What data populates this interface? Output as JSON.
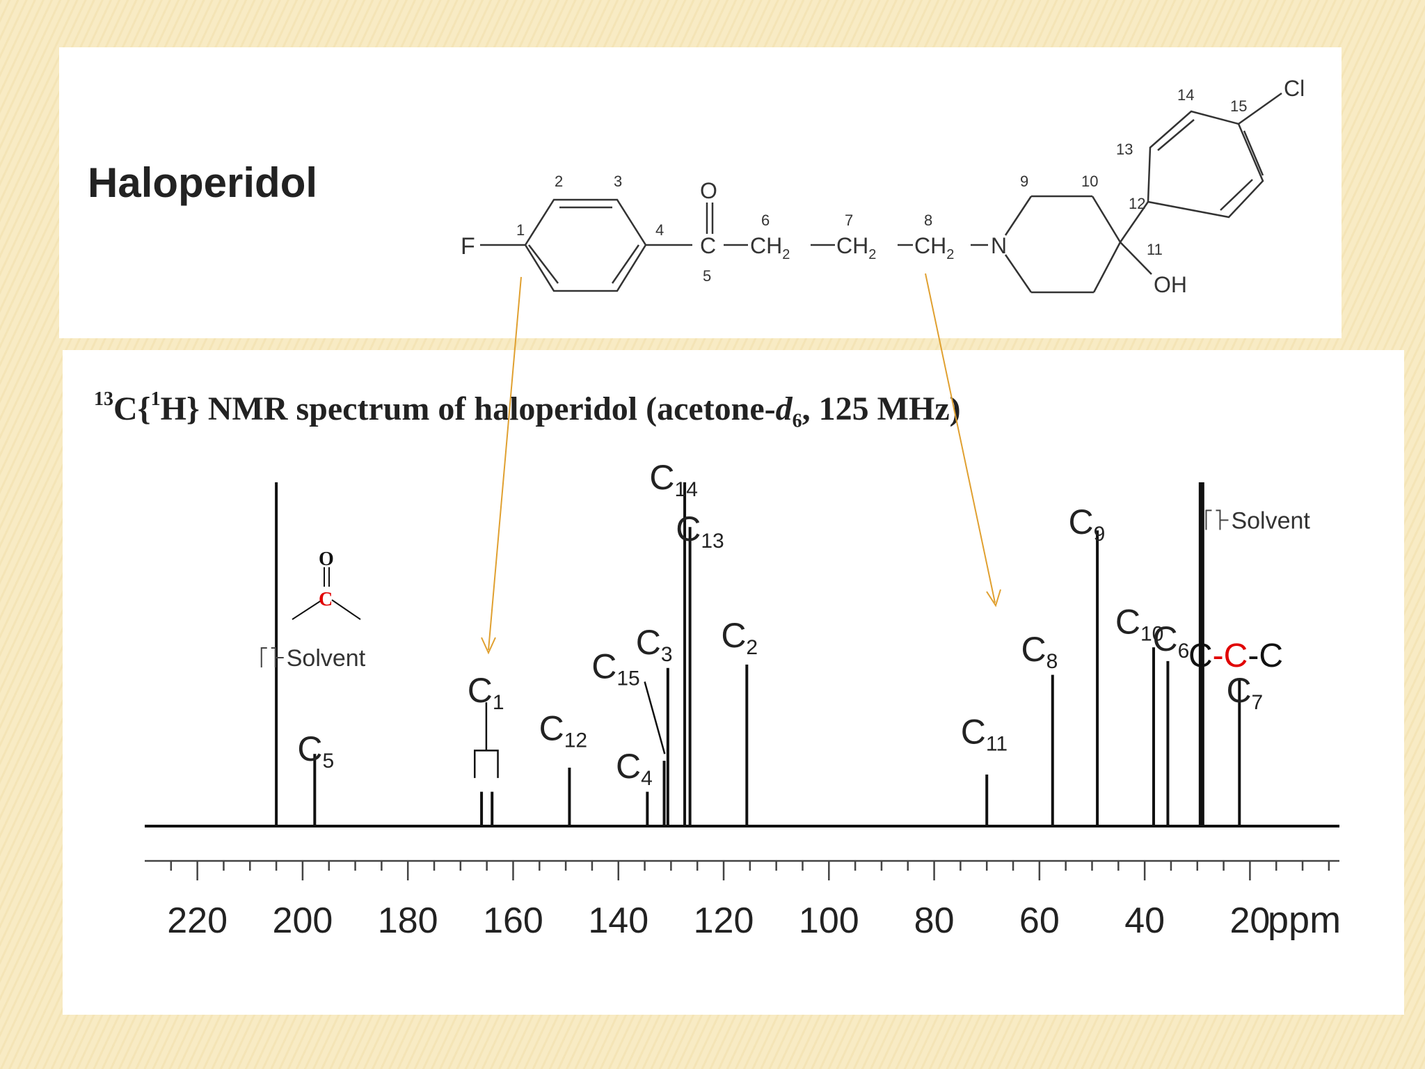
{
  "slide": {
    "background_color": "#f8ebc4",
    "molecule_name": "Haloperidol",
    "spectrum_title": {
      "isotope": "13",
      "part1": "C{",
      "decoupled_isotope": "1",
      "part2": "H} NMR spectrum of haloperidol (acetone-",
      "solvent_italic": "d",
      "solvent_sub": "6",
      "part3": ", 125 MHz)"
    },
    "accent_color": "#e0a030",
    "highlight_color": "#e00000"
  },
  "structure": {
    "atoms": {
      "F": "F",
      "O_carbonyl": "O",
      "C5": "C",
      "N": "N",
      "Cl": "Cl",
      "OH": "OH",
      "CH2": "CH",
      "CH2_sub": "2"
    },
    "numbers": [
      "1",
      "2",
      "3",
      "4",
      "5",
      "6",
      "7",
      "8",
      "9",
      "10",
      "11",
      "12",
      "13",
      "14",
      "15"
    ]
  },
  "carbonyl_inset": {
    "O": "O",
    "C": "C"
  },
  "ccc_inset": {
    "left": "C",
    "dash1": "-",
    "center": "C",
    "dash2": "-",
    "right": "C"
  },
  "chart_data": {
    "type": "spectrum",
    "x_axis": {
      "unit": "ppm",
      "range": [
        230,
        3
      ],
      "reversed": true,
      "major_ticks": [
        220,
        200,
        180,
        160,
        140,
        120,
        100,
        80,
        60,
        40,
        20
      ],
      "minor_step": 5
    },
    "y_range": [
      0,
      100
    ],
    "peaks": [
      {
        "ppm": 205.0,
        "height": 100,
        "weight": 1
      },
      {
        "ppm": 197.7,
        "height": 21,
        "weight": 1
      },
      {
        "ppm": 166.0,
        "height": 10,
        "weight": 1
      },
      {
        "ppm": 164.0,
        "height": 10,
        "weight": 1
      },
      {
        "ppm": 149.3,
        "height": 17,
        "weight": 1
      },
      {
        "ppm": 134.5,
        "height": 10,
        "weight": 1
      },
      {
        "ppm": 131.3,
        "height": 19,
        "weight": 1
      },
      {
        "ppm": 130.6,
        "height": 46,
        "weight": 1
      },
      {
        "ppm": 127.4,
        "height": 100,
        "weight": 1
      },
      {
        "ppm": 126.4,
        "height": 87,
        "weight": 1
      },
      {
        "ppm": 115.6,
        "height": 47,
        "weight": 1
      },
      {
        "ppm": 70.0,
        "height": 15,
        "weight": 1
      },
      {
        "ppm": 57.5,
        "height": 44,
        "weight": 1
      },
      {
        "ppm": 49.0,
        "height": 86,
        "weight": 1
      },
      {
        "ppm": 38.3,
        "height": 52,
        "weight": 1
      },
      {
        "ppm": 35.6,
        "height": 48,
        "weight": 1
      },
      {
        "ppm": 29.2,
        "height": 100,
        "weight": 3
      },
      {
        "ppm": 22.0,
        "height": 43,
        "weight": 1
      }
    ],
    "labels": [
      {
        "atom": "C",
        "sub": "5",
        "ppm": 197.5,
        "level": 19
      },
      {
        "atom": "C",
        "sub": "1",
        "ppm": 165.2,
        "level": 36
      },
      {
        "atom": "C",
        "sub": "12",
        "ppm": 150.5,
        "level": 25
      },
      {
        "atom": "C",
        "sub": "4",
        "ppm": 137.0,
        "level": 14
      },
      {
        "atom": "C",
        "sub": "15",
        "ppm": 140.5,
        "level": 43
      },
      {
        "atom": "C",
        "sub": "3",
        "ppm": 133.2,
        "level": 50
      },
      {
        "atom": "C",
        "sub": "14",
        "ppm": 129.5,
        "level": 98
      },
      {
        "atom": "C",
        "sub": "13",
        "ppm": 124.5,
        "level": 83
      },
      {
        "atom": "C",
        "sub": "2",
        "ppm": 117.0,
        "level": 52
      },
      {
        "atom": "C",
        "sub": "11",
        "ppm": 70.5,
        "level": 24
      },
      {
        "atom": "C",
        "sub": "8",
        "ppm": 60.0,
        "level": 48
      },
      {
        "atom": "C",
        "sub": "9",
        "ppm": 51.0,
        "level": 85
      },
      {
        "atom": "C",
        "sub": "10",
        "ppm": 41.0,
        "level": 56
      },
      {
        "atom": "C",
        "sub": "6",
        "ppm": 35.0,
        "level": 51
      },
      {
        "atom": "C",
        "sub": "7",
        "ppm": 21.0,
        "level": 36
      }
    ],
    "solvent_labels": [
      {
        "text": "Solvent",
        "ppm": 206.5,
        "level": 49
      },
      {
        "text": "Solvent",
        "ppm": 27.0,
        "level": 89
      }
    ]
  }
}
